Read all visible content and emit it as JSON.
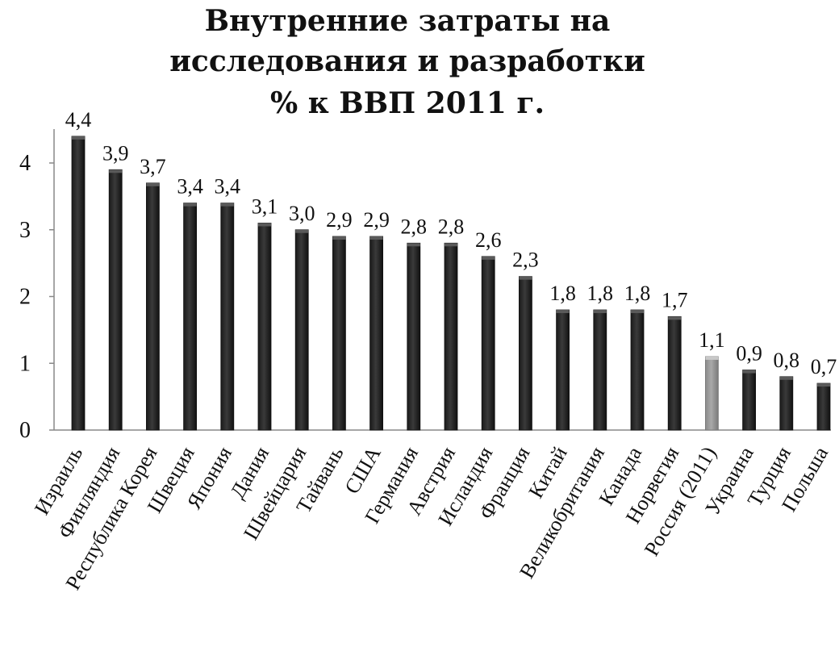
{
  "chart_data": {
    "type": "bar",
    "title_lines": [
      "Внутренние затраты на",
      "исследования и разработки",
      "% к ВВП   2011 г."
    ],
    "categories": [
      "Израиль",
      "Финляндия",
      "Республика Корея",
      "Швеция",
      "Япония",
      "Дания",
      "Швейцария",
      "Тайвань",
      "США",
      "Германия",
      "Австрия",
      "Исландия",
      "Франция",
      "Китай",
      "Великобритания",
      "Канада",
      "Норвегия",
      "Россия (2011)",
      "Украина",
      "Турция",
      "Польша"
    ],
    "values": [
      4.4,
      3.9,
      3.7,
      3.4,
      3.4,
      3.1,
      3.0,
      2.9,
      2.9,
      2.8,
      2.8,
      2.6,
      2.3,
      1.8,
      1.8,
      1.8,
      1.7,
      1.1,
      0.9,
      0.8,
      0.7
    ],
    "data_labels": [
      "4,4",
      "3,9",
      "3,7",
      "3,4",
      "3,4",
      "3,1",
      "3,0",
      "2,9",
      "2,9",
      "2,8",
      "2,8",
      "2,6",
      "2,3",
      "1,8",
      "1,8",
      "1,8",
      "1,7",
      "1,1",
      "0,9",
      "0,8",
      "0,7"
    ],
    "y_ticks": [
      "0",
      "1",
      "2",
      "3",
      "4"
    ],
    "ylim": [
      0,
      4.4
    ],
    "grid": false,
    "legend": "none",
    "bar_color": "#3a3a3a",
    "highlight_index": 17,
    "highlight_color": "#a9a9a9"
  }
}
